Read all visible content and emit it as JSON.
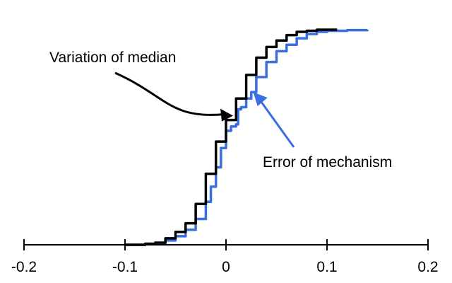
{
  "chart_data": {
    "type": "line",
    "title": "",
    "xlabel": "",
    "ylabel": "",
    "xlim": [
      -0.2,
      0.2
    ],
    "ylim": [
      0,
      1
    ],
    "grid": false,
    "legend": "none",
    "x_ticks": [
      -0.2,
      -0.1,
      0,
      0.1,
      0.2
    ],
    "x_tick_labels": [
      "-0.2",
      "-0.1",
      "0",
      "0.1",
      "0.2"
    ],
    "series": [
      {
        "name": "Variation of median",
        "color": "#000000",
        "points": [
          [
            -0.1,
            0.0
          ],
          [
            -0.08,
            0.005
          ],
          [
            -0.07,
            0.01
          ],
          [
            -0.06,
            0.03
          ],
          [
            -0.05,
            0.06
          ],
          [
            -0.04,
            0.1
          ],
          [
            -0.03,
            0.19
          ],
          [
            -0.02,
            0.33
          ],
          [
            -0.01,
            0.48
          ],
          [
            0.0,
            0.58
          ],
          [
            0.01,
            0.68
          ],
          [
            0.02,
            0.79
          ],
          [
            0.03,
            0.87
          ],
          [
            0.04,
            0.92
          ],
          [
            0.05,
            0.95
          ],
          [
            0.06,
            0.975
          ],
          [
            0.07,
            0.99
          ],
          [
            0.08,
            0.995
          ],
          [
            0.09,
            1.0
          ],
          [
            0.11,
            1.0
          ]
        ]
      },
      {
        "name": "Error of mechanism",
        "color": "#3a6fe0",
        "points": [
          [
            -0.1,
            0.0
          ],
          [
            -0.08,
            0.003
          ],
          [
            -0.07,
            0.008
          ],
          [
            -0.06,
            0.02
          ],
          [
            -0.05,
            0.04
          ],
          [
            -0.04,
            0.07
          ],
          [
            -0.03,
            0.12
          ],
          [
            -0.02,
            0.2
          ],
          [
            -0.015,
            0.27
          ],
          [
            -0.01,
            0.36
          ],
          [
            -0.005,
            0.45
          ],
          [
            0.0,
            0.53
          ],
          [
            0.005,
            0.55
          ],
          [
            0.01,
            0.56
          ],
          [
            0.012,
            0.63
          ],
          [
            0.015,
            0.64
          ],
          [
            0.02,
            0.68
          ],
          [
            0.025,
            0.71
          ],
          [
            0.03,
            0.78
          ],
          [
            0.04,
            0.85
          ],
          [
            0.05,
            0.9
          ],
          [
            0.06,
            0.93
          ],
          [
            0.07,
            0.96
          ],
          [
            0.08,
            0.98
          ],
          [
            0.09,
            0.99
          ],
          [
            0.1,
            0.995
          ],
          [
            0.12,
            0.998
          ],
          [
            0.14,
            1.0
          ]
        ]
      }
    ],
    "annotations": [
      {
        "text": "Variation of median",
        "color": "#000000",
        "points_to": [
          0.007,
          0.6
        ]
      },
      {
        "text": "Error of mechanism",
        "color": "#3a6fe0",
        "points_to": [
          0.027,
          0.71
        ]
      }
    ]
  }
}
